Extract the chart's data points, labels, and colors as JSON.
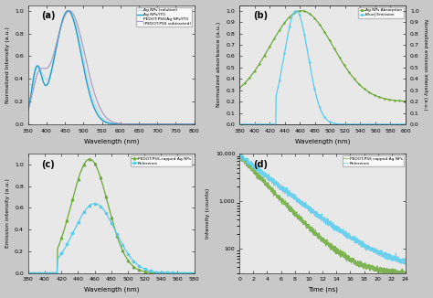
{
  "bg_color": "#c8c8c8",
  "panel_bg": "#e8e8e8",
  "panel_a": {
    "label": "(a)",
    "xlabel": "Wavelength (nm)",
    "ylabel": "Normalized Intensity (a.u.)",
    "xlim": [
      350,
      800
    ],
    "ylim": [
      0.0,
      1.05
    ],
    "yticks": [
      0.0,
      0.2,
      0.4,
      0.6,
      0.8,
      1.0
    ],
    "xticks": [
      350,
      400,
      450,
      500,
      550,
      600,
      650,
      700,
      750,
      800
    ],
    "legend": [
      "Ag NPs (solution)",
      "Ag NPs/ITO",
      "PEDOT:PSS/Ag NPs/ITO\n(PEDOT:PSS subtracted)"
    ],
    "colors": [
      "#add8e6",
      "#1a9fcc",
      "#9988bb"
    ]
  },
  "panel_b": {
    "label": "(b)",
    "xlabel": "Wavelength (nm)",
    "ylabel": "Normalized absorbance (a.u.)",
    "ylabel2": "Normalized emission intensity (a.u.)",
    "xlim": [
      380,
      600
    ],
    "ylim": [
      0.0,
      1.05
    ],
    "yticks": [
      0.0,
      0.1,
      0.2,
      0.3,
      0.4,
      0.5,
      0.6,
      0.7,
      0.8,
      0.9,
      1.0
    ],
    "xticks": [
      380,
      400,
      420,
      440,
      460,
      480,
      500,
      520,
      540,
      560,
      580,
      600
    ],
    "legend": [
      "Ag NPs Absorption",
      "BlueJ Emission"
    ],
    "colors": [
      "#6aaa38",
      "#55ccee"
    ]
  },
  "panel_c": {
    "label": "(c)",
    "xlabel": "Wavelength (nm)",
    "ylabel": "Emission intensity (a.u.)",
    "xlim": [
      380,
      580
    ],
    "ylim": [
      0.0,
      1.1
    ],
    "yticks": [
      0.0,
      0.2,
      0.4,
      0.6,
      0.8,
      1.0
    ],
    "xticks": [
      380,
      400,
      420,
      440,
      460,
      480,
      500,
      520,
      540,
      560,
      580
    ],
    "legend": [
      "PEDOT:PSS-capped Ag NPs",
      "Reference"
    ],
    "colors": [
      "#6aaa38",
      "#55ccee"
    ]
  },
  "panel_d": {
    "label": "(d)",
    "xlabel": "Time (ns)",
    "ylabel": "Intensity (counts)",
    "xlim": [
      0,
      24
    ],
    "ylim_log": [
      30,
      10000
    ],
    "yticks_log": [
      100,
      1000,
      10000
    ],
    "xticks": [
      0,
      2,
      4,
      6,
      8,
      10,
      12,
      14,
      16,
      18,
      20,
      22,
      24
    ],
    "legend": [
      "PEDOT:PSS capped Ag NPs",
      "Reference"
    ],
    "colors": [
      "#6aaa38",
      "#55ccee"
    ]
  }
}
